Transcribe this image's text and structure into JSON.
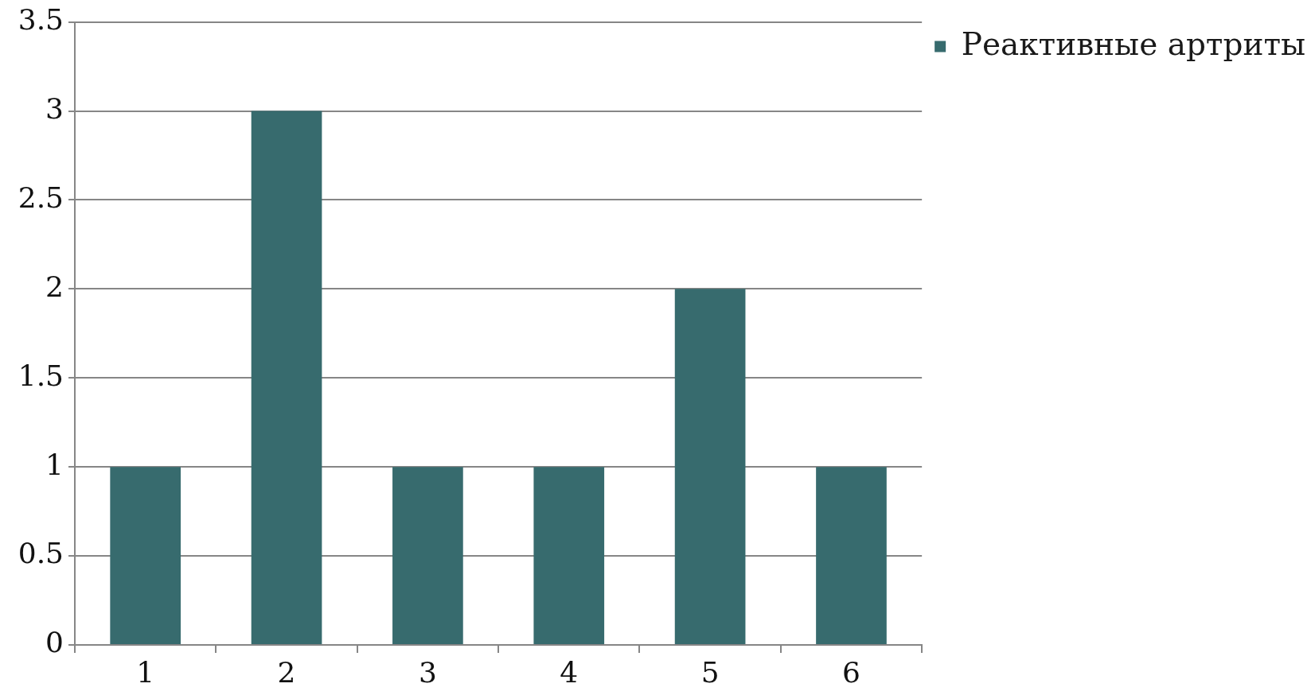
{
  "chart_data": {
    "type": "bar",
    "categories": [
      "1",
      "2",
      "3",
      "4",
      "5",
      "6"
    ],
    "series": [
      {
        "name": "Реактивные артриты",
        "color": "#376b6e",
        "values": [
          1,
          3,
          1,
          1,
          2,
          1
        ]
      }
    ],
    "ylim": [
      0,
      3.5
    ],
    "yticks": [
      0,
      0.5,
      1,
      1.5,
      2,
      2.5,
      3,
      3.5
    ],
    "grid": "y",
    "legend": "top right"
  }
}
